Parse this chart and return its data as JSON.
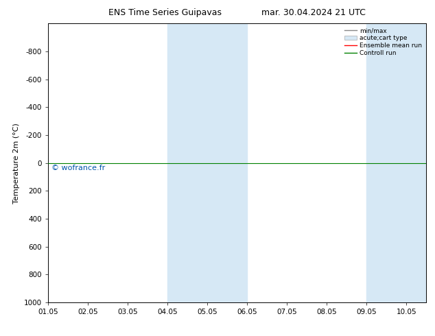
{
  "title_left": "ENS Time Series Guipavas",
  "title_right": "mar. 30.04.2024 21 UTC",
  "ylabel": "Temperature 2m (°C)",
  "ylim_bottom": 1000,
  "ylim_top": -1000,
  "yticks": [
    -800,
    -600,
    -400,
    -200,
    0,
    200,
    400,
    600,
    800,
    1000
  ],
  "xtick_labels": [
    "01.05",
    "02.05",
    "03.05",
    "04.05",
    "05.05",
    "06.05",
    "07.05",
    "08.05",
    "09.05",
    "10.05"
  ],
  "xtick_positions": [
    0,
    1,
    2,
    3,
    4,
    5,
    6,
    7,
    8,
    9
  ],
  "xlim": [
    0,
    9.5
  ],
  "shaded_bands": [
    {
      "xstart": 3.0,
      "xend": 5.0
    },
    {
      "xstart": 8.0,
      "xend": 9.5
    }
  ],
  "control_run_y": 0,
  "watermark": "© wofrance.fr",
  "watermark_color": "#0055aa",
  "shade_color": "#d6e8f5",
  "bg_color": "#ffffff",
  "legend_labels": [
    "min/max",
    "acute;cart type",
    "Ensemble mean run",
    "Controll run"
  ],
  "control_run_color": "#008000",
  "ensemble_mean_color": "#ff0000",
  "minmax_color": "#888888",
  "band_edge_color": "#aaaaaa"
}
